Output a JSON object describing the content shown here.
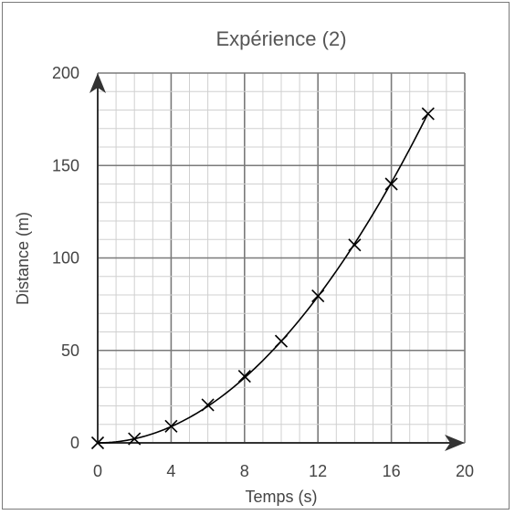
{
  "chart_data": {
    "type": "scatter",
    "title": "Expérience (2)",
    "xlabel": "Temps (s)",
    "ylabel": "Distance (m)",
    "xlim": [
      0,
      20
    ],
    "ylim": [
      0,
      200
    ],
    "xticks": [
      0,
      4,
      8,
      12,
      16,
      20
    ],
    "yticks": [
      0,
      50,
      100,
      150,
      200
    ],
    "grid": true,
    "points": {
      "x": [
        0,
        2,
        4,
        6,
        8,
        10,
        12,
        14,
        16,
        18
      ],
      "y": [
        0,
        2.2,
        9,
        20.5,
        36,
        55,
        79.5,
        107,
        140,
        178
      ]
    },
    "fit_curve": {
      "form": "y = 0.55 * x^2"
    }
  }
}
